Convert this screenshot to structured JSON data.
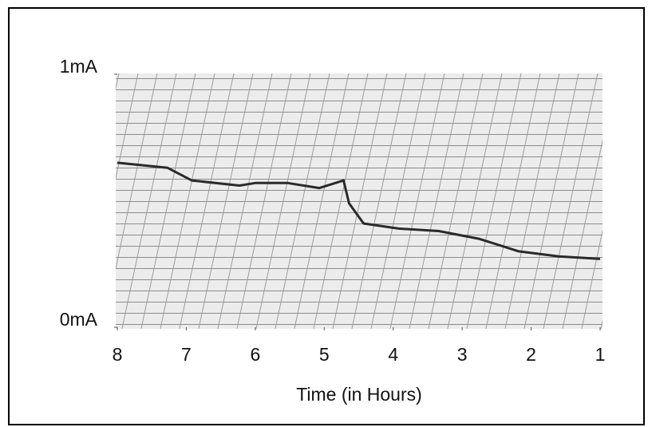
{
  "chart_data": {
    "type": "line",
    "x_label": "Time (in Hours)",
    "x": [
      8,
      7.27,
      6.92,
      6.23,
      6.0,
      5.53,
      5.07,
      4.72,
      4.64,
      4.43,
      3.92,
      3.34,
      2.76,
      2.18,
      1.6,
      1.0
    ],
    "values": [
      0.65,
      0.63,
      0.58,
      0.56,
      0.57,
      0.57,
      0.55,
      0.58,
      0.49,
      0.41,
      0.39,
      0.38,
      0.35,
      0.3,
      0.28,
      0.27
    ],
    "color": "#2a2a2a",
    "xlim": [
      8,
      1
    ],
    "xticks": [
      8,
      7,
      6,
      5,
      4,
      3,
      2,
      1
    ],
    "ylim": [
      0,
      1
    ],
    "yticks": [
      {
        "value": 0,
        "label": "0mA"
      },
      {
        "value": 1,
        "label": "1mA"
      }
    ]
  }
}
